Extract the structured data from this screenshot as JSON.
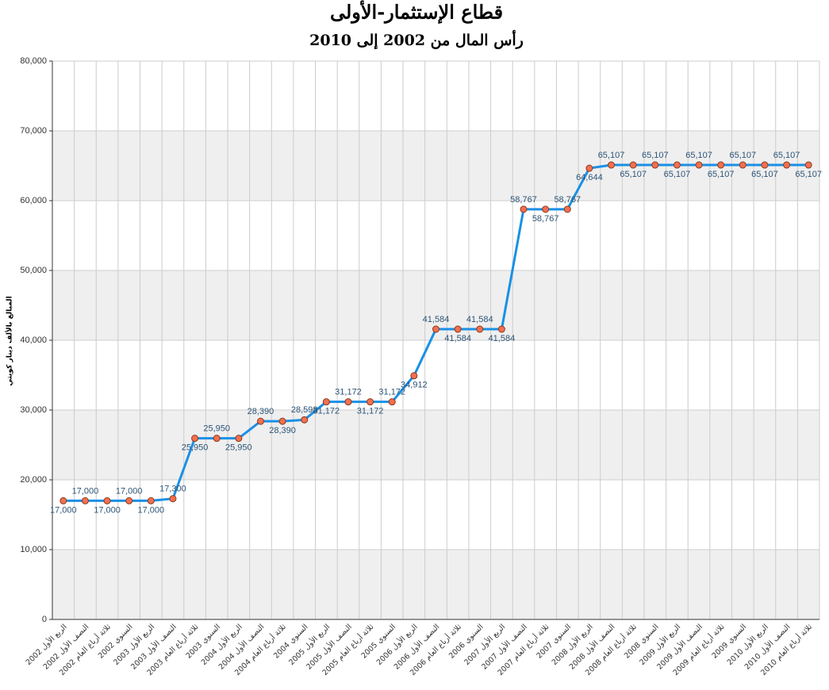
{
  "chart_data": {
    "type": "line",
    "title": "قطاع الإستثمار-الأولى",
    "subtitle": "رأس المال من 2002 إلى 2010",
    "y_label": "المبالغ بالألف دينار كويتي",
    "categories": [
      "الربع الأول 2002",
      "النصف الأول 2002",
      "ثلاثة أرباع العام 2002",
      "السنوي 2002",
      "الربع الأول 2003",
      "النصف الأول 2003",
      "ثلاثة أرباع العام 2003",
      "السنوي 2003",
      "الربع الأول 2004",
      "النصف الأول 2004",
      "ثلاثة أرباع العام 2004",
      "السنوي 2004",
      "الربع الأول 2005",
      "النصف الأول 2005",
      "ثلاثة أرباع العام 2005",
      "السنوي 2005",
      "الربع الأول 2006",
      "النصف الأول 2006",
      "ثلاثة أرباع العام 2006",
      "السنوي 2006",
      "الربع الأول 2007",
      "النصف الأول 2007",
      "ثلاثة أرباع العام 2007",
      "السنوي 2007",
      "الربع الأول 2008",
      "النصف الأول 2008",
      "ثلاثة أرباع العام 2008",
      "السنوي 2008",
      "الربع الأول 2009",
      "النصف الأول 2009",
      "ثلاثة أرباع العام 2009",
      "السنوي 2009",
      "الربع الأول 2010",
      "النصف الأول 2010",
      "ثلاثة أرباع العام 2010"
    ],
    "values": [
      17000,
      17000,
      17000,
      17000,
      17000,
      17300,
      25950,
      25950,
      25950,
      28390,
      28390,
      28598,
      31172,
      31172,
      31172,
      31172,
      34912,
      41584,
      41584,
      41584,
      41584,
      58767,
      58767,
      58767,
      64644,
      65107,
      65107,
      65107,
      65107,
      65107,
      65107,
      65107,
      65107,
      65107,
      65107
    ],
    "value_labels": [
      "17,000",
      "17,000",
      "17,000",
      "17,000",
      "17,000",
      "17,300",
      "25,950",
      "25,950",
      "25,950",
      "28,390",
      "28,390",
      "28,598",
      "31,172",
      "31,172",
      "31,172",
      "31,172",
      "34,912",
      "41,584",
      "41,584",
      "41,584",
      "41,584",
      "58,767",
      "58,767",
      "58,767",
      "64,644",
      "65,107",
      "65,107",
      "65,107",
      "65,107",
      "65,107",
      "65,107",
      "65,107",
      "65,107",
      "65,107",
      "65,107"
    ],
    "color": "#1a90e6",
    "marker_color": "#f2704f",
    "ylim": [
      0,
      80000
    ],
    "yticks": [
      0,
      {
        "value": 10000,
        "label": "10,000"
      },
      {
        "value": 20000,
        "label": "20,000"
      },
      {
        "value": 30000,
        "label": "30,000"
      },
      {
        "value": 40000,
        "label": "40,000"
      },
      {
        "value": 50000,
        "label": "50,000"
      },
      {
        "value": 60000,
        "label": "60,000"
      },
      {
        "value": 70000,
        "label": "70,000"
      },
      {
        "value": 80000,
        "label": "80,000"
      }
    ],
    "grid": true
  }
}
